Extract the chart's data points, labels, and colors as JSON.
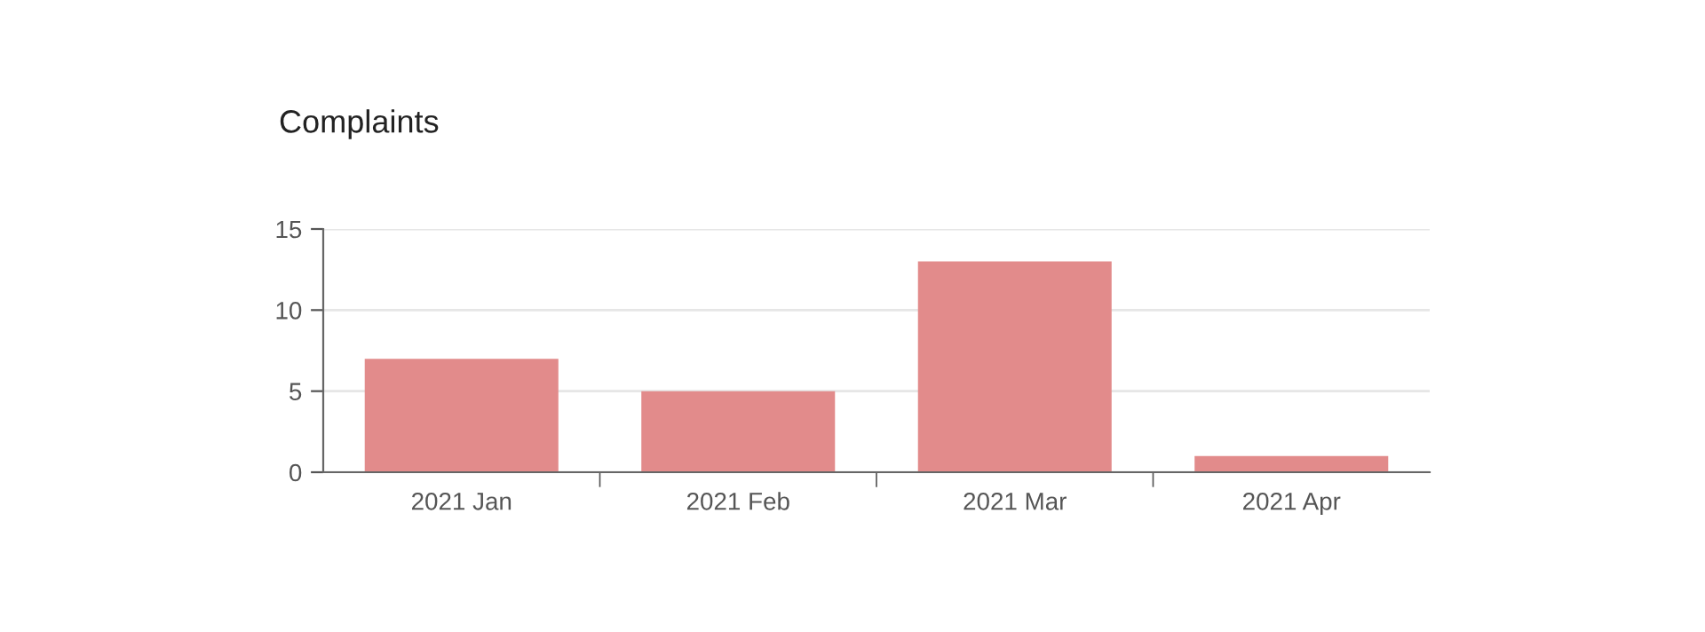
{
  "chart_data": {
    "type": "bar",
    "title": "Complaints",
    "categories": [
      "2021 Jan",
      "2021 Feb",
      "2021 Mar",
      "2021 Apr"
    ],
    "values": [
      7,
      5,
      13,
      1
    ],
    "color": "#e28b8b",
    "ylim": [
      0,
      15
    ],
    "yticks": [
      0,
      5,
      10,
      15
    ],
    "grid": "y"
  }
}
